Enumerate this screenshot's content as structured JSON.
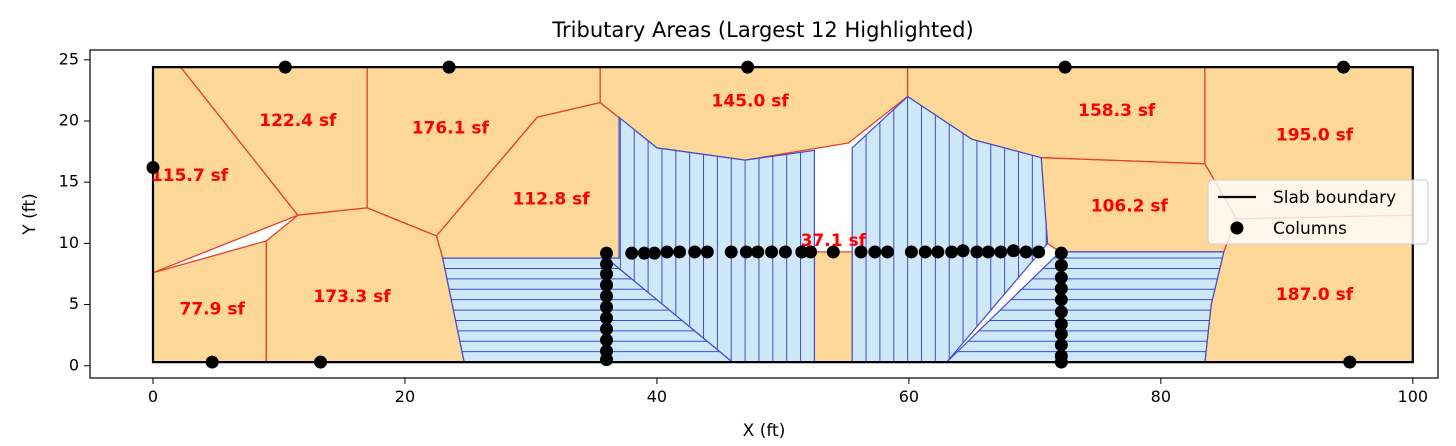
{
  "chart_data": {
    "type": "polygon-map",
    "title": "Tributary Areas (Largest 12 Highlighted)",
    "xlabel": "X (ft)",
    "ylabel": "Y (ft)",
    "xlim": [
      -5,
      102
    ],
    "ylim": [
      -1,
      25.8
    ],
    "xticks": [
      0,
      20,
      40,
      60,
      80,
      100
    ],
    "yticks": [
      0,
      5,
      10,
      15,
      20,
      25
    ],
    "slab_boundary": [
      [
        0,
        0.3
      ],
      [
        100,
        0.3
      ],
      [
        100,
        24.4
      ],
      [
        0,
        24.4
      ]
    ],
    "colors": {
      "highlighted_fill": "#fdd898",
      "highlighted_edge": "#e8402a",
      "other_fill": "#cfe8f7",
      "other_edge": "#3f4bd6",
      "boundary": "#000000",
      "column": "#000000",
      "label": "#ff0000"
    },
    "highlighted_areas": [
      {
        "label": "115.7 sf",
        "at": [
          2.9,
          15.5
        ],
        "polygon": [
          [
            0,
            24.4
          ],
          [
            2.2,
            24.4
          ],
          [
            11.5,
            12.3
          ],
          [
            0,
            7.6
          ]
        ]
      },
      {
        "label": "122.4 sf",
        "at": [
          11.5,
          20.0
        ],
        "polygon": [
          [
            2.2,
            24.4
          ],
          [
            17,
            24.4
          ],
          [
            17,
            12.9
          ],
          [
            11.5,
            12.3
          ]
        ]
      },
      {
        "label": "176.1 sf",
        "at": [
          23.6,
          19.4
        ],
        "polygon": [
          [
            17,
            24.4
          ],
          [
            35.5,
            24.4
          ],
          [
            35.5,
            21.5
          ],
          [
            30.5,
            20.3
          ],
          [
            22.5,
            10.6
          ],
          [
            17,
            12.9
          ]
        ]
      },
      {
        "label": "112.8 sf",
        "at": [
          31.6,
          13.6
        ],
        "polygon": [
          [
            22.5,
            10.6
          ],
          [
            30.5,
            20.3
          ],
          [
            35.5,
            21.5
          ],
          [
            37,
            20.3
          ],
          [
            37,
            8.8
          ],
          [
            23,
            8.8
          ]
        ]
      },
      {
        "label": "77.9 sf",
        "at": [
          4.7,
          4.6
        ],
        "polygon": [
          [
            0,
            7.6
          ],
          [
            9,
            10.2
          ],
          [
            9,
            0.3
          ],
          [
            0,
            0.3
          ]
        ]
      },
      {
        "label": "173.3 sf",
        "at": [
          15.8,
          5.6
        ],
        "polygon": [
          [
            9,
            0.3
          ],
          [
            9,
            10.2
          ],
          [
            11.5,
            12.3
          ],
          [
            17,
            12.9
          ],
          [
            22.5,
            10.6
          ],
          [
            23,
            8.8
          ],
          [
            24.7,
            0.3
          ]
        ]
      },
      {
        "label": "145.0 sf",
        "at": [
          47.4,
          21.6
        ],
        "polygon": [
          [
            35.5,
            24.4
          ],
          [
            59.9,
            24.4
          ],
          [
            59.9,
            22
          ],
          [
            55.2,
            18.2
          ],
          [
            47,
            16.8
          ],
          [
            40,
            17.8
          ],
          [
            35.5,
            21.5
          ]
        ]
      },
      {
        "label": "158.3 sf",
        "at": [
          76.5,
          20.8
        ],
        "polygon": [
          [
            59.9,
            24.4
          ],
          [
            83.5,
            24.4
          ],
          [
            83.5,
            16.5
          ],
          [
            70.5,
            17
          ],
          [
            65,
            18.5
          ],
          [
            59.9,
            22
          ]
        ]
      },
      {
        "label": "195.0 sf",
        "at": [
          92.2,
          18.8
        ],
        "polygon": [
          [
            83.5,
            24.4
          ],
          [
            100,
            24.4
          ],
          [
            100,
            12.3
          ],
          [
            86,
            12
          ],
          [
            83.5,
            16.5
          ]
        ]
      },
      {
        "label": "106.2 sf",
        "at": [
          77.5,
          13.0
        ],
        "polygon": [
          [
            70.5,
            17
          ],
          [
            83.5,
            16.5
          ],
          [
            86,
            12
          ],
          [
            85,
            9.3
          ],
          [
            72,
            9.3
          ],
          [
            71,
            10
          ]
        ]
      },
      {
        "label": "187.0 sf",
        "at": [
          92.2,
          5.8
        ],
        "polygon": [
          [
            86,
            12
          ],
          [
            100,
            12.3
          ],
          [
            100,
            0.3
          ],
          [
            83.5,
            0.3
          ],
          [
            84,
            5
          ],
          [
            85,
            9.3
          ]
        ]
      },
      {
        "label": "37.1 sf",
        "at": [
          54.0,
          10.2
        ],
        "polygon": [
          [
            52.5,
            9.3
          ],
          [
            55.5,
            9.3
          ],
          [
            55.5,
            0.3
          ],
          [
            52.5,
            0.3
          ]
        ]
      }
    ],
    "other_regions": [
      {
        "polygon": [
          [
            23,
            8.8
          ],
          [
            36,
            8.8
          ],
          [
            36,
            0.3
          ],
          [
            24.7,
            0.3
          ]
        ],
        "hatch": "horizontal"
      },
      {
        "polygon": [
          [
            36,
            8.8
          ],
          [
            46,
            0.3
          ],
          [
            36,
            0.3
          ]
        ],
        "hatch": "horizontal"
      },
      {
        "polygon": [
          [
            37,
            20.3
          ],
          [
            40,
            17.8
          ],
          [
            47,
            16.8
          ],
          [
            52.5,
            17.6
          ],
          [
            52.5,
            0.3
          ],
          [
            46,
            0.3
          ],
          [
            36,
            8.8
          ],
          [
            37,
            8.8
          ]
        ],
        "hatch": "vertical"
      },
      {
        "polygon": [
          [
            55.5,
            17.8
          ],
          [
            59.9,
            22
          ],
          [
            65,
            18.5
          ],
          [
            70.5,
            17
          ],
          [
            71,
            10
          ],
          [
            63,
            0.3
          ],
          [
            55.5,
            0.3
          ]
        ],
        "hatch": "vertical"
      },
      {
        "polygon": [
          [
            63,
            0.3
          ],
          [
            72,
            9.3
          ],
          [
            72,
            0.3
          ]
        ],
        "hatch": "horizontal"
      },
      {
        "polygon": [
          [
            72,
            9.3
          ],
          [
            85,
            9.3
          ],
          [
            84,
            5
          ],
          [
            83.5,
            0.3
          ],
          [
            72,
            0.3
          ]
        ],
        "hatch": "horizontal"
      }
    ],
    "columns": [
      [
        0,
        16.2
      ],
      [
        10.5,
        24.4
      ],
      [
        23.5,
        24.4
      ],
      [
        47.2,
        24.4
      ],
      [
        72.4,
        24.4
      ],
      [
        94.5,
        24.4
      ],
      [
        4.7,
        0.3
      ],
      [
        13.3,
        0.3
      ],
      [
        95,
        0.3
      ],
      [
        36,
        9.2
      ],
      [
        36,
        8.3
      ],
      [
        36,
        7.5
      ],
      [
        36,
        6.6
      ],
      [
        36,
        5.7
      ],
      [
        36,
        4.8
      ],
      [
        36,
        3.9
      ],
      [
        36,
        3.0
      ],
      [
        36,
        2.1
      ],
      [
        36,
        1.2
      ],
      [
        36,
        0.5
      ],
      [
        38,
        9.2
      ],
      [
        39,
        9.2
      ],
      [
        39.8,
        9.2
      ],
      [
        40.8,
        9.3
      ],
      [
        41.8,
        9.3
      ],
      [
        43,
        9.3
      ],
      [
        44,
        9.3
      ],
      [
        45.9,
        9.3
      ],
      [
        47.1,
        9.3
      ],
      [
        48,
        9.3
      ],
      [
        49.1,
        9.3
      ],
      [
        50.2,
        9.3
      ],
      [
        51.5,
        9.3
      ],
      [
        52.2,
        9.3
      ],
      [
        54,
        9.3
      ],
      [
        56.2,
        9.3
      ],
      [
        57.3,
        9.3
      ],
      [
        58.3,
        9.3
      ],
      [
        60.2,
        9.3
      ],
      [
        61.3,
        9.3
      ],
      [
        62.3,
        9.3
      ],
      [
        63.4,
        9.3
      ],
      [
        64.3,
        9.4
      ],
      [
        65.4,
        9.3
      ],
      [
        66.3,
        9.3
      ],
      [
        67.3,
        9.3
      ],
      [
        68.3,
        9.4
      ],
      [
        69.3,
        9.3
      ],
      [
        70.3,
        9.3
      ],
      [
        72.1,
        9.2
      ],
      [
        72.1,
        8.2
      ],
      [
        72.1,
        7.2
      ],
      [
        72.1,
        6.3
      ],
      [
        72.1,
        5.4
      ],
      [
        72.1,
        4.4
      ],
      [
        72.1,
        3.4
      ],
      [
        72.1,
        2.6
      ],
      [
        72.1,
        1.7
      ],
      [
        72.1,
        0.8
      ],
      [
        72.1,
        0.3
      ]
    ],
    "legend": {
      "position": "center-right",
      "entries": [
        {
          "label": "Slab boundary",
          "marker": "line"
        },
        {
          "label": "Columns",
          "marker": "dot"
        }
      ]
    }
  }
}
